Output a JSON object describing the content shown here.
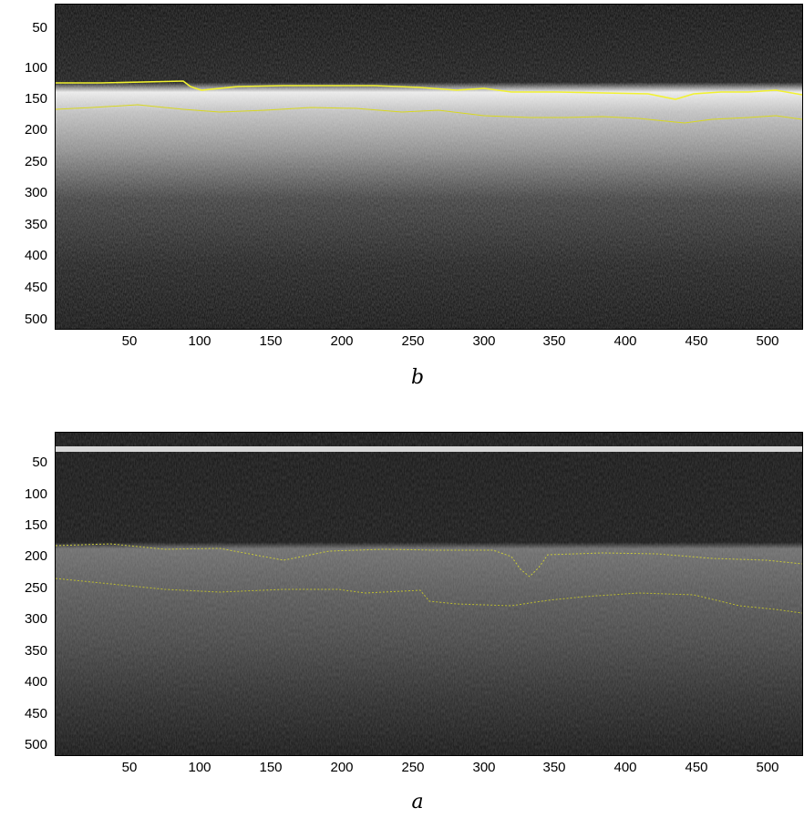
{
  "panels": [
    {
      "caption": "b",
      "xticks": [
        "50",
        "100",
        "150",
        "200",
        "250",
        "300",
        "350",
        "400",
        "450",
        "500"
      ],
      "yticks": [
        "50",
        "100",
        "150",
        "200",
        "250",
        "300",
        "350",
        "400",
        "450",
        "500"
      ],
      "boundary_color": "#e8e830"
    },
    {
      "caption": "a",
      "xticks": [
        "50",
        "100",
        "150",
        "200",
        "250",
        "300",
        "350",
        "400",
        "450",
        "500"
      ],
      "yticks": [
        "50",
        "100",
        "150",
        "200",
        "250",
        "300",
        "350",
        "400",
        "450",
        "500"
      ],
      "boundary_color": "#c9c93a"
    }
  ]
}
